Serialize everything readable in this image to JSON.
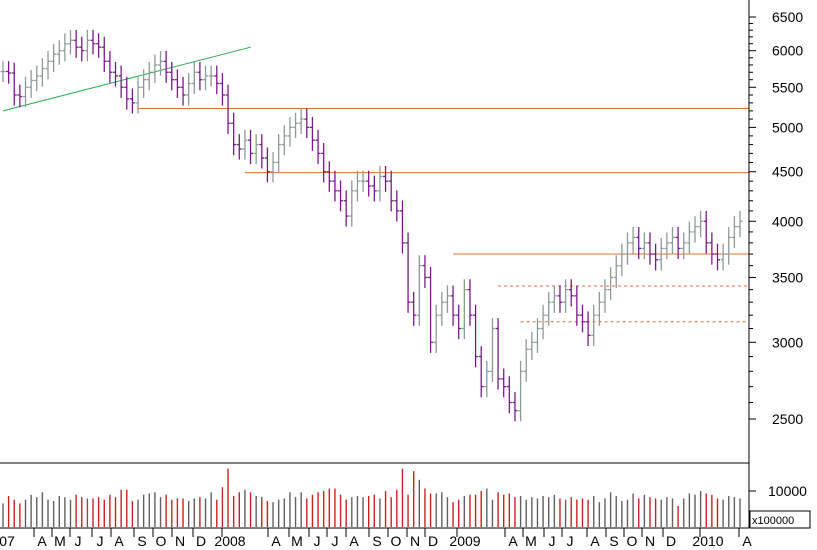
{
  "colors": {
    "price_up": "#8c9a9a",
    "price_down": "#7a1a8a",
    "trendline": "#22aa44",
    "support": "#e07030",
    "volume_up": "#606060",
    "volume_down": "#cc2020",
    "axis": "#000000"
  },
  "chart_data": {
    "type": "ohlc-bar",
    "scale": "log",
    "grid": false,
    "price_axis": {
      "side": "right",
      "ticks": [
        "6500",
        "6000",
        "5500",
        "5000",
        "4500",
        "4000",
        "3500",
        "3000",
        "2500"
      ],
      "tick_values": [
        6500,
        6000,
        5500,
        5000,
        4500,
        4000,
        3500,
        3000,
        2500
      ]
    },
    "volume_axis": {
      "side": "right",
      "tick": "10000",
      "tick_value": 10000,
      "multiplier": "x100000"
    },
    "x_labels": [
      "07",
      "A",
      "M",
      "J",
      "J",
      "A",
      "S",
      "O",
      "N",
      "D",
      "2008",
      "A",
      "M",
      "J",
      "J",
      "A",
      "S",
      "O",
      "N",
      "D",
      "2009",
      "A",
      "M",
      "J",
      "J",
      "A",
      "S",
      "O",
      "N",
      "D",
      "2010",
      "A"
    ],
    "weekly_closes": [
      5710,
      5690,
      5400,
      5380,
      5500,
      5590,
      5650,
      5750,
      5850,
      5950,
      6000,
      6100,
      6150,
      6050,
      6000,
      6150,
      6100,
      6050,
      5850,
      5700,
      5650,
      5500,
      5350,
      5300,
      5500,
      5600,
      5700,
      5800,
      5850,
      5700,
      5600,
      5500,
      5400,
      5550,
      5700,
      5600,
      5650,
      5650,
      5550,
      5400,
      5050,
      4800,
      4750,
      4850,
      4700,
      4800,
      4650,
      4500,
      4600,
      4800,
      4900,
      5000,
      5050,
      5100,
      5000,
      4850,
      4700,
      4500,
      4400,
      4300,
      4200,
      4050,
      4300,
      4400,
      4400,
      4350,
      4300,
      4450,
      4400,
      4200,
      4100,
      3800,
      3300,
      3200,
      3600,
      3500,
      3000,
      3200,
      3300,
      3350,
      3200,
      3100,
      3400,
      3200,
      2900,
      2700,
      2800,
      3100,
      2750,
      2700,
      2600,
      2550,
      2800,
      2950,
      3000,
      3100,
      3200,
      3300,
      3350,
      3300,
      3400,
      3350,
      3200,
      3150,
      3050,
      3200,
      3300,
      3400,
      3500,
      3600,
      3700,
      3800,
      3850,
      3750,
      3800,
      3700,
      3650,
      3750,
      3800,
      3850,
      3750,
      3800,
      3900,
      3950,
      4000,
      3800,
      3700,
      3650,
      3700,
      3850,
      3950,
      4000
    ],
    "weekly_volumes": [
      9000,
      9600,
      9300,
      9000,
      9300,
      9700,
      9500,
      9900,
      9300,
      9200,
      9600,
      9500,
      9300,
      9700,
      9500,
      9400,
      9400,
      9500,
      9300,
      9700,
      9500,
      10100,
      10100,
      9200,
      9300,
      9700,
      9800,
      9900,
      9500,
      9700,
      9300,
      9400,
      9400,
      9200,
      9400,
      9500,
      9400,
      9900,
      9300,
      10300,
      11800,
      9600,
      9900,
      10100,
      9900,
      9600,
      9500,
      9200,
      9100,
      9300,
      9400,
      9900,
      9500,
      9900,
      9400,
      9700,
      9900,
      10000,
      10200,
      10200,
      9700,
      9300,
      9500,
      9600,
      9500,
      9600,
      9700,
      9400,
      10000,
      9500,
      10100,
      11800,
      9700,
      11600,
      10900,
      10200,
      9800,
      9800,
      9900,
      9500,
      9100,
      9300,
      9600,
      9700,
      9700,
      10000,
      10200,
      9300,
      9900,
      9700,
      9800,
      9500,
      9600,
      9300,
      9500,
      9400,
      9600,
      9500,
      9700,
      9400,
      9300,
      9500,
      9300,
      9400,
      9300,
      9600,
      9100,
      9400,
      9900,
      9600,
      9200,
      9300,
      9800,
      9400,
      9700,
      9500,
      9400,
      9300,
      9500,
      9400,
      8800,
      9400,
      9800,
      9700,
      10000,
      9800,
      9700,
      9400,
      9300,
      9600,
      9500,
      9400
    ],
    "trendline": {
      "from_week": 0,
      "from_value": 5200,
      "to_week": 44,
      "to_value": 6050
    },
    "support_lines": [
      {
        "value": 5230,
        "from_week": 24,
        "style": "solid"
      },
      {
        "value": 4490,
        "from_week": 43,
        "style": "solid"
      },
      {
        "value": 3700,
        "from_week": 80,
        "style": "solid"
      },
      {
        "value": 3430,
        "from_week": 88,
        "style": "dashed"
      },
      {
        "value": 3150,
        "from_week": 92,
        "style": "dashed"
      }
    ]
  }
}
